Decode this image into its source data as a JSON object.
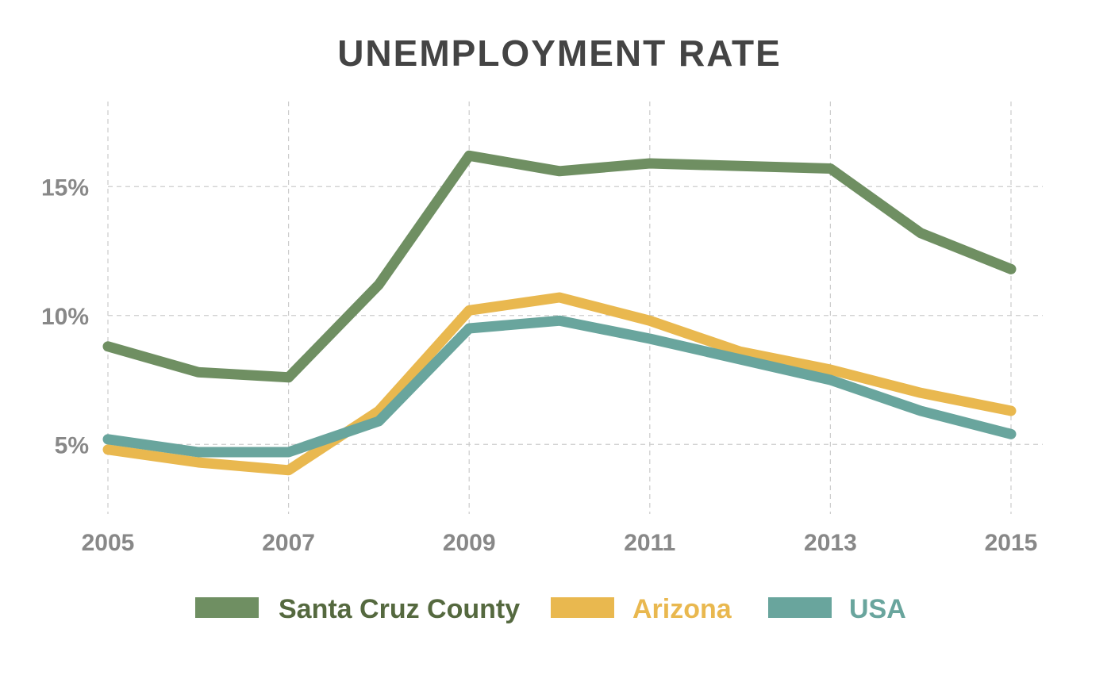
{
  "chart_data": {
    "type": "line",
    "title": "UNEMPLOYMENT RATE",
    "xlabel": "",
    "ylabel": "",
    "x": [
      2005,
      2006,
      2007,
      2008,
      2009,
      2010,
      2011,
      2012,
      2013,
      2014,
      2015
    ],
    "x_ticks": [
      "2005",
      "2007",
      "2009",
      "2011",
      "2013",
      "2015"
    ],
    "y_ticks": [
      "5%",
      "10%",
      "15%"
    ],
    "y_tick_values": [
      5,
      10,
      15
    ],
    "xlim": [
      2005,
      2015
    ],
    "ylim": [
      2.3,
      18.3
    ],
    "grid": true,
    "legend_position": "bottom",
    "series": [
      {
        "name": "Santa Cruz County",
        "color": "#6f8f62",
        "label_color": "#55693f",
        "values": [
          8.8,
          7.8,
          7.6,
          11.2,
          16.2,
          15.6,
          15.9,
          15.8,
          15.7,
          13.2,
          11.8
        ]
      },
      {
        "name": "Arizona",
        "color": "#e9b84f",
        "label_color": "#e9b84f",
        "values": [
          4.8,
          4.3,
          4.0,
          6.3,
          10.2,
          10.7,
          9.8,
          8.6,
          7.9,
          7.0,
          6.3
        ]
      },
      {
        "name": "USA",
        "color": "#69a59d",
        "label_color": "#69a59d",
        "values": [
          5.2,
          4.7,
          4.7,
          5.9,
          9.5,
          9.8,
          9.1,
          8.3,
          7.5,
          6.3,
          5.4
        ]
      }
    ]
  }
}
